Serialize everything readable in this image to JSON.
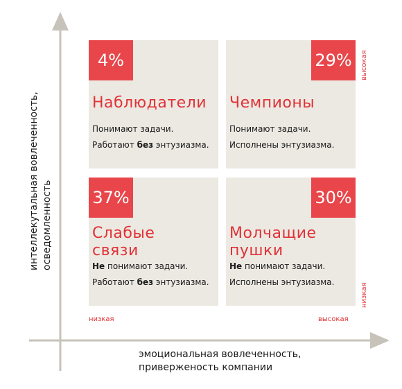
{
  "quadrants": {
    "top_left": {
      "percent": "4%",
      "title": "Наблюдатели",
      "line1": "Понимают задачи.",
      "line2_pre": "Работают ",
      "line2_bold": "без",
      "line2_post": " энтузиазма."
    },
    "top_right": {
      "percent": "29%",
      "title": "Чемпионы",
      "line1": "Понимают задачи.",
      "line2": "Исполнены энтузиазма."
    },
    "bottom_left": {
      "percent": "37%",
      "title_line1": "Слабые",
      "title_line2": "связи",
      "line1_bold": "Не",
      "line1_post": " понимают задачи.",
      "line2_pre": "Работают ",
      "line2_bold": "без",
      "line2_post": " энтузиазма."
    },
    "bottom_right": {
      "percent": "30%",
      "title_line1": "Молчащие",
      "title_line2": "пушки",
      "line1_bold": "Не",
      "line1_post": " понимают задачи.",
      "line2": "Исполнены энтузиазма."
    }
  },
  "levels": {
    "x_low": "низкая",
    "x_high": "высокая",
    "y_high": "высокая",
    "y_low": "низкая"
  },
  "axes": {
    "x_label_line1": "эмоциональная вовлеченность,",
    "x_label_line2": "приверженость компании",
    "y_label_line1": "интеллекутальная вовлеченность,",
    "y_label_line2": "осведомленность"
  },
  "colors": {
    "accent": "#e8464a",
    "title": "#e03236",
    "panel": "#ece9e3",
    "axis": "#c7c3ba"
  }
}
